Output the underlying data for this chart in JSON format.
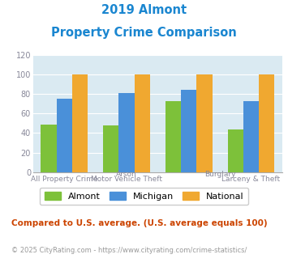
{
  "title_line1": "2019 Almont",
  "title_line2": "Property Crime Comparison",
  "title_color": "#1a86d0",
  "almont_values": [
    49,
    48,
    73,
    44
  ],
  "michigan_values": [
    75,
    81,
    84,
    73
  ],
  "national_values": [
    100,
    100,
    100,
    100
  ],
  "almont_color": "#7dc13a",
  "michigan_color": "#4a90d9",
  "national_color": "#f0a830",
  "bar_width": 0.25,
  "ylim": [
    0,
    120
  ],
  "yticks": [
    0,
    20,
    40,
    60,
    80,
    100,
    120
  ],
  "background_color": "#daeaf2",
  "legend_labels": [
    "Almont",
    "Michigan",
    "National"
  ],
  "footnote1": "Compared to U.S. average. (U.S. average equals 100)",
  "footnote1_color": "#cc4400",
  "footnote2": "© 2025 CityRating.com - https://www.cityrating.com/crime-statistics/",
  "footnote2_color": "#999999",
  "label_color": "#888899",
  "top_labels": [
    [
      "Arson",
      1.0
    ],
    [
      "Burglary",
      2.5
    ]
  ],
  "bottom_labels": [
    [
      "All Property Crime",
      0.0
    ],
    [
      "Motor Vehicle Theft",
      1.0
    ],
    [
      "Larceny & Theft",
      3.0
    ]
  ],
  "grid_color": "white",
  "spine_color": "#aaaaaa"
}
